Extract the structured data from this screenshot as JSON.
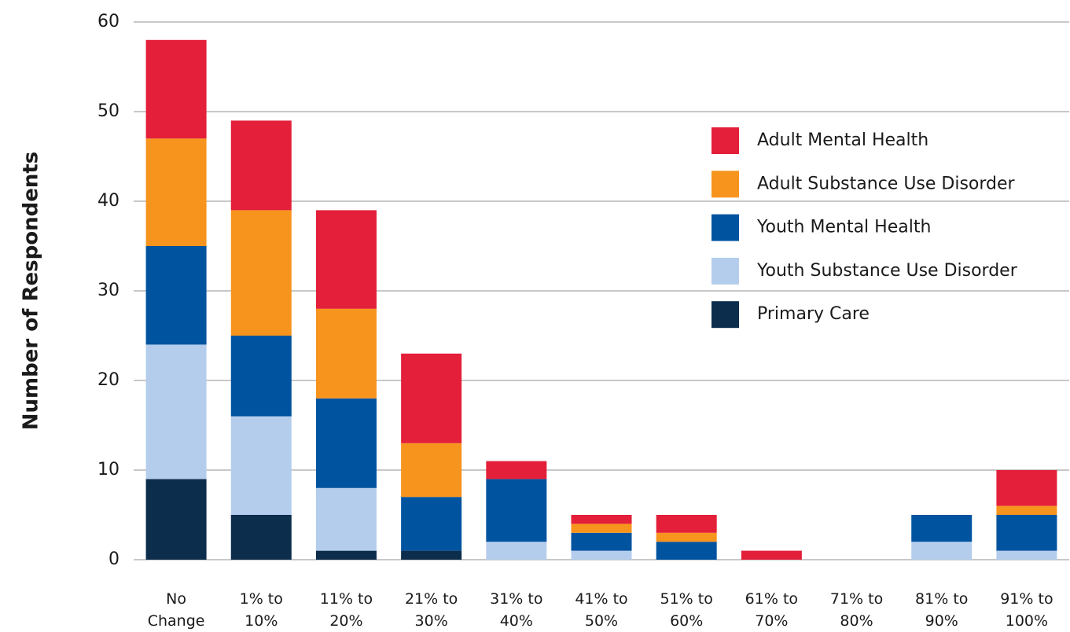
{
  "chart_data": {
    "type": "stacked_bar",
    "y_label": "Number of Respondents",
    "categories": [
      "No Change",
      "1% to 10%",
      "11% to 20%",
      "21% to 30%",
      "31% to 40%",
      "41% to 50%",
      "51% to 60%",
      "61% to 70%",
      "71% to 80%",
      "81% to 90%",
      "91% to 100%"
    ],
    "series": [
      {
        "name": "Adult Mental Health",
        "color": "#e31f3a",
        "values": [
          11,
          10,
          11,
          10,
          2,
          1,
          2,
          1,
          0,
          0,
          4
        ]
      },
      {
        "name": "Adult Substance Use Disorder",
        "color": "#f7941d",
        "values": [
          12,
          14,
          10,
          6,
          0,
          1,
          1,
          0,
          0,
          0,
          1
        ]
      },
      {
        "name": "Youth Mental Health",
        "color": "#00539f",
        "values": [
          11,
          9,
          10,
          6,
          7,
          2,
          2,
          0,
          0,
          3,
          4
        ]
      },
      {
        "name": "Youth Substance Use Disorder",
        "color": "#b5cdec",
        "values": [
          15,
          11,
          7,
          0,
          2,
          1,
          0,
          0,
          0,
          2,
          1
        ]
      },
      {
        "name": "Primary Care",
        "color": "#0c2d4c",
        "values": [
          9,
          5,
          1,
          1,
          0,
          0,
          0,
          0,
          0,
          0,
          0
        ]
      }
    ],
    "ylim": [
      0,
      60
    ],
    "yticks": [
      0,
      10,
      20,
      30,
      40,
      50,
      60
    ],
    "grid": true,
    "legend": "upper right"
  }
}
